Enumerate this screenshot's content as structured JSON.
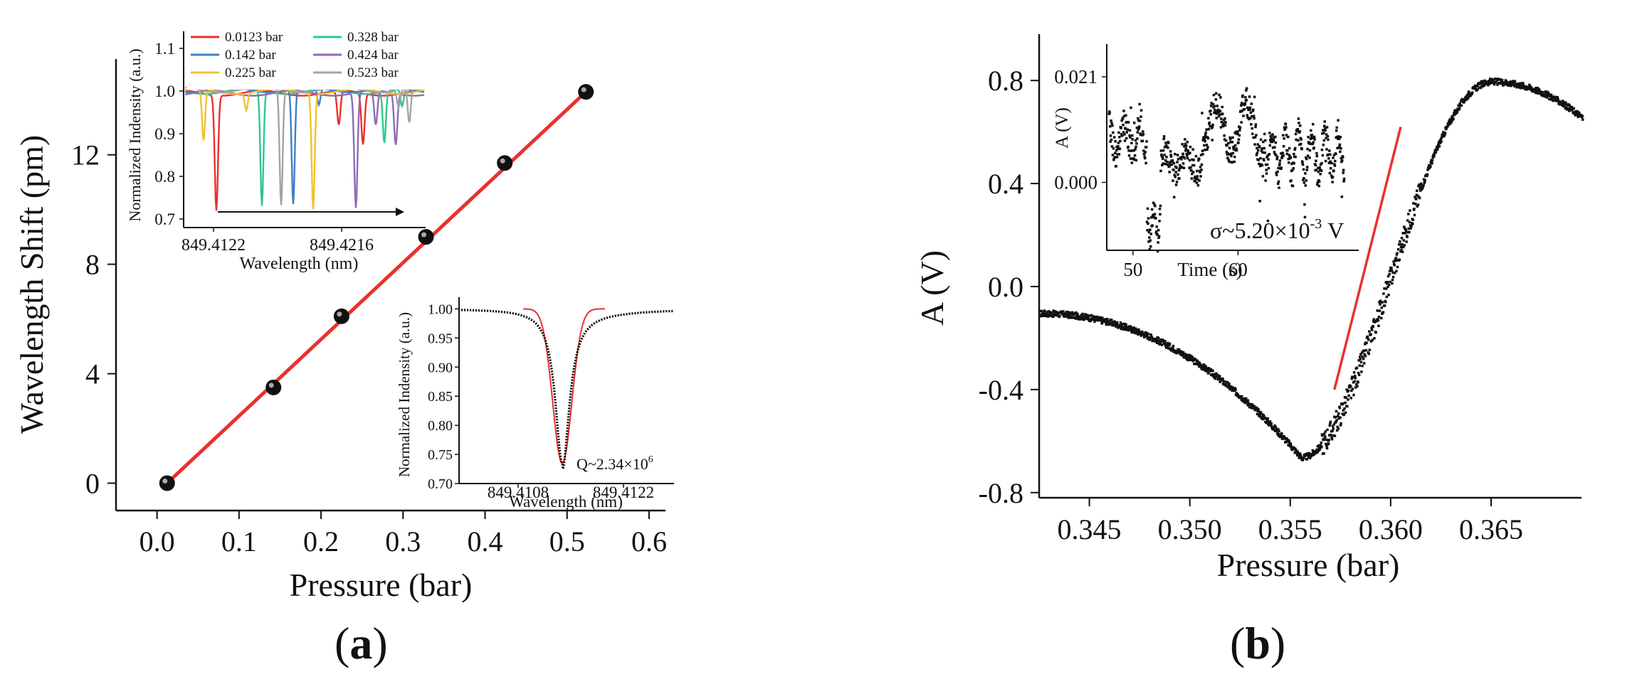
{
  "chart_data": [
    {
      "panel": "(a)",
      "type": "scatter",
      "xlabel": "Pressure (bar)",
      "ylabel": "Wavelength Shift (pm)",
      "xlim": [
        -0.05,
        0.62
      ],
      "ylim": [
        -1,
        15.5
      ],
      "xticks": [
        "0.0",
        "0.1",
        "0.2",
        "0.3",
        "0.4",
        "0.5",
        "0.6"
      ],
      "xtick_values": [
        0.0,
        0.1,
        0.2,
        0.3,
        0.4,
        0.5,
        0.6
      ],
      "yticks": [
        "0",
        "4",
        "8",
        "12"
      ],
      "ytick_values": [
        0,
        4,
        8,
        12
      ],
      "points": {
        "x": [
          0.0123,
          0.142,
          0.225,
          0.328,
          0.424,
          0.523
        ],
        "y": [
          0.0,
          3.5,
          6.1,
          9.0,
          11.7,
          14.3
        ]
      },
      "fit_line": {
        "x": [
          0.0123,
          0.523
        ],
        "y": [
          0.0,
          14.3
        ],
        "color": "#e8322f"
      },
      "inset_top": {
        "xlabel": "Wavelength (nm)",
        "ylabel": "Normalized Indensity (a.u.)",
        "xticks": [
          "849.4122",
          "849.4216"
        ],
        "yticks": [
          "0.7",
          "0.8",
          "0.9",
          "1.0",
          "1.1"
        ],
        "ytick_values": [
          0.7,
          0.8,
          0.9,
          1.0,
          1.1
        ],
        "ylim": [
          0.68,
          1.14
        ],
        "legend": [
          {
            "name": "0.0123 bar",
            "color": "#e8322f"
          },
          {
            "name": "0.328 bar",
            "color": "#2ec88c"
          },
          {
            "name": "0.142 bar",
            "color": "#3f7fc4"
          },
          {
            "name": "0.424 bar",
            "color": "#8e6bb5"
          },
          {
            "name": "0.225 bar",
            "color": "#f2c12e"
          },
          {
            "name": "0.523 bar",
            "color": "#a3a3a3"
          }
        ],
        "dip_depths": [
          0.73,
          0.73,
          0.73,
          0.73,
          0.73,
          0.73
        ]
      },
      "inset_bottom": {
        "xlabel": "Wavelength (nm)",
        "ylabel": "Normalized Indensity (a.u.)",
        "xticks": [
          "849.4108",
          "849.4122"
        ],
        "yticks": [
          "0.70",
          "0.75",
          "0.80",
          "0.85",
          "0.90",
          "0.95",
          "1.00"
        ],
        "ytick_values": [
          0.7,
          0.75,
          0.8,
          0.85,
          0.9,
          0.95,
          1.0
        ],
        "ylim": [
          0.7,
          1.02
        ],
        "annotation_prefix": "Q~2.34×10",
        "annotation_exp": "6",
        "dip_min": 0.735
      }
    },
    {
      "panel": "(b)",
      "type": "scatter",
      "xlabel": "Pressure (bar)",
      "ylabel": "A (V)",
      "xlim": [
        0.3425,
        0.3695
      ],
      "ylim": [
        -0.82,
        0.98
      ],
      "xticks": [
        "0.345",
        "0.350",
        "0.355",
        "0.360",
        "0.365"
      ],
      "xtick_values": [
        0.345,
        0.35,
        0.355,
        0.36,
        0.365
      ],
      "yticks": [
        "0.8",
        "0.4",
        "0.0",
        "-0.4",
        "-0.8"
      ],
      "ytick_values": [
        0.8,
        0.4,
        0.0,
        -0.4,
        -0.8
      ],
      "min_point": {
        "x": 0.3555,
        "y": -0.66
      },
      "max_point": {
        "x": 0.365,
        "y": 0.8
      },
      "fit_line": {
        "x": [
          0.3572,
          0.3605
        ],
        "y": [
          -0.4,
          0.62
        ],
        "color": "#e8322f"
      },
      "inset": {
        "xlabel": "Time (s)",
        "ylabel": "A (V)",
        "xticks": [
          "50",
          "60"
        ],
        "xtick_values": [
          50,
          60
        ],
        "xlim": [
          47.5,
          71.5
        ],
        "yticks": [
          "0.021",
          "0.000"
        ],
        "ytick_values": [
          0.021,
          0.0
        ],
        "ylim": [
          -0.0135,
          0.0275
        ],
        "annotation_prefix": "σ~5.20×10",
        "annotation_exp": "-3",
        "annotation_suffix": " V"
      }
    }
  ],
  "panel_labels": {
    "a": "a",
    "b": "b"
  }
}
